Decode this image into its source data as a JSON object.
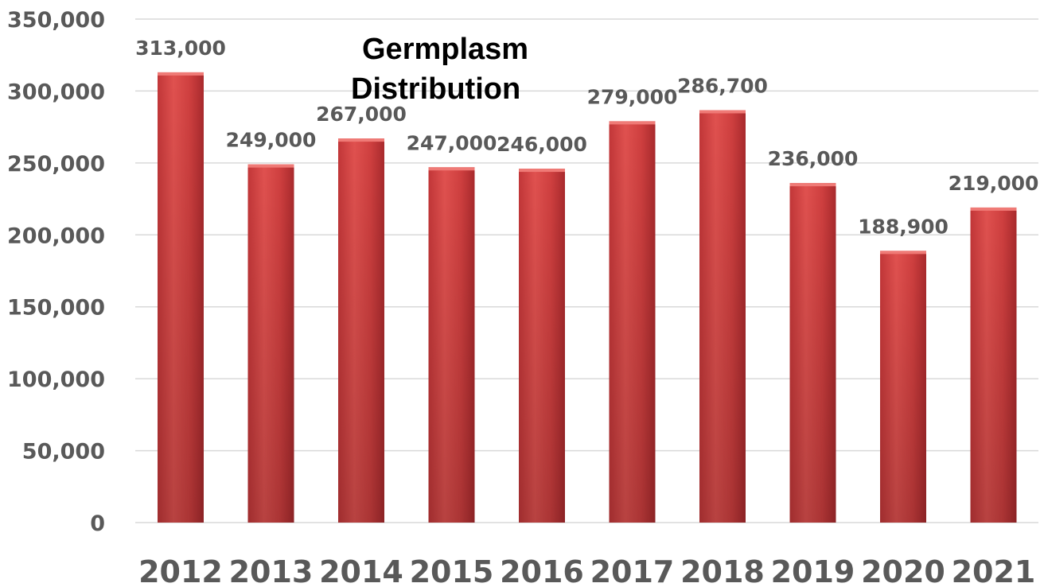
{
  "chart_data": {
    "type": "bar",
    "title": "Germplasm Distribution",
    "categories": [
      "2012",
      "2013",
      "2014",
      "2015",
      "2016",
      "2017",
      "2018",
      "2019",
      "2020",
      "2021"
    ],
    "values": [
      313000,
      249000,
      267000,
      247000,
      246000,
      279000,
      286700,
      236000,
      188900,
      219000
    ],
    "data_labels": [
      "313,000",
      "249,000",
      "267,000",
      "247,000",
      "246,000",
      "279,000",
      "286,700",
      "236,000",
      "188,900",
      "219,000"
    ],
    "y_ticks": [
      "0",
      "50,000",
      "100,000",
      "150,000",
      "200,000",
      "250,000",
      "300,000",
      "350,000"
    ],
    "ylim": [
      0,
      350000
    ],
    "y_tick_step": 50000,
    "grid": true,
    "legend": "none",
    "xlabel": "",
    "ylabel": "",
    "bar_color": "#c0393b",
    "bar_color_light": "#e55a58",
    "bar_color_dark": "#922226"
  }
}
